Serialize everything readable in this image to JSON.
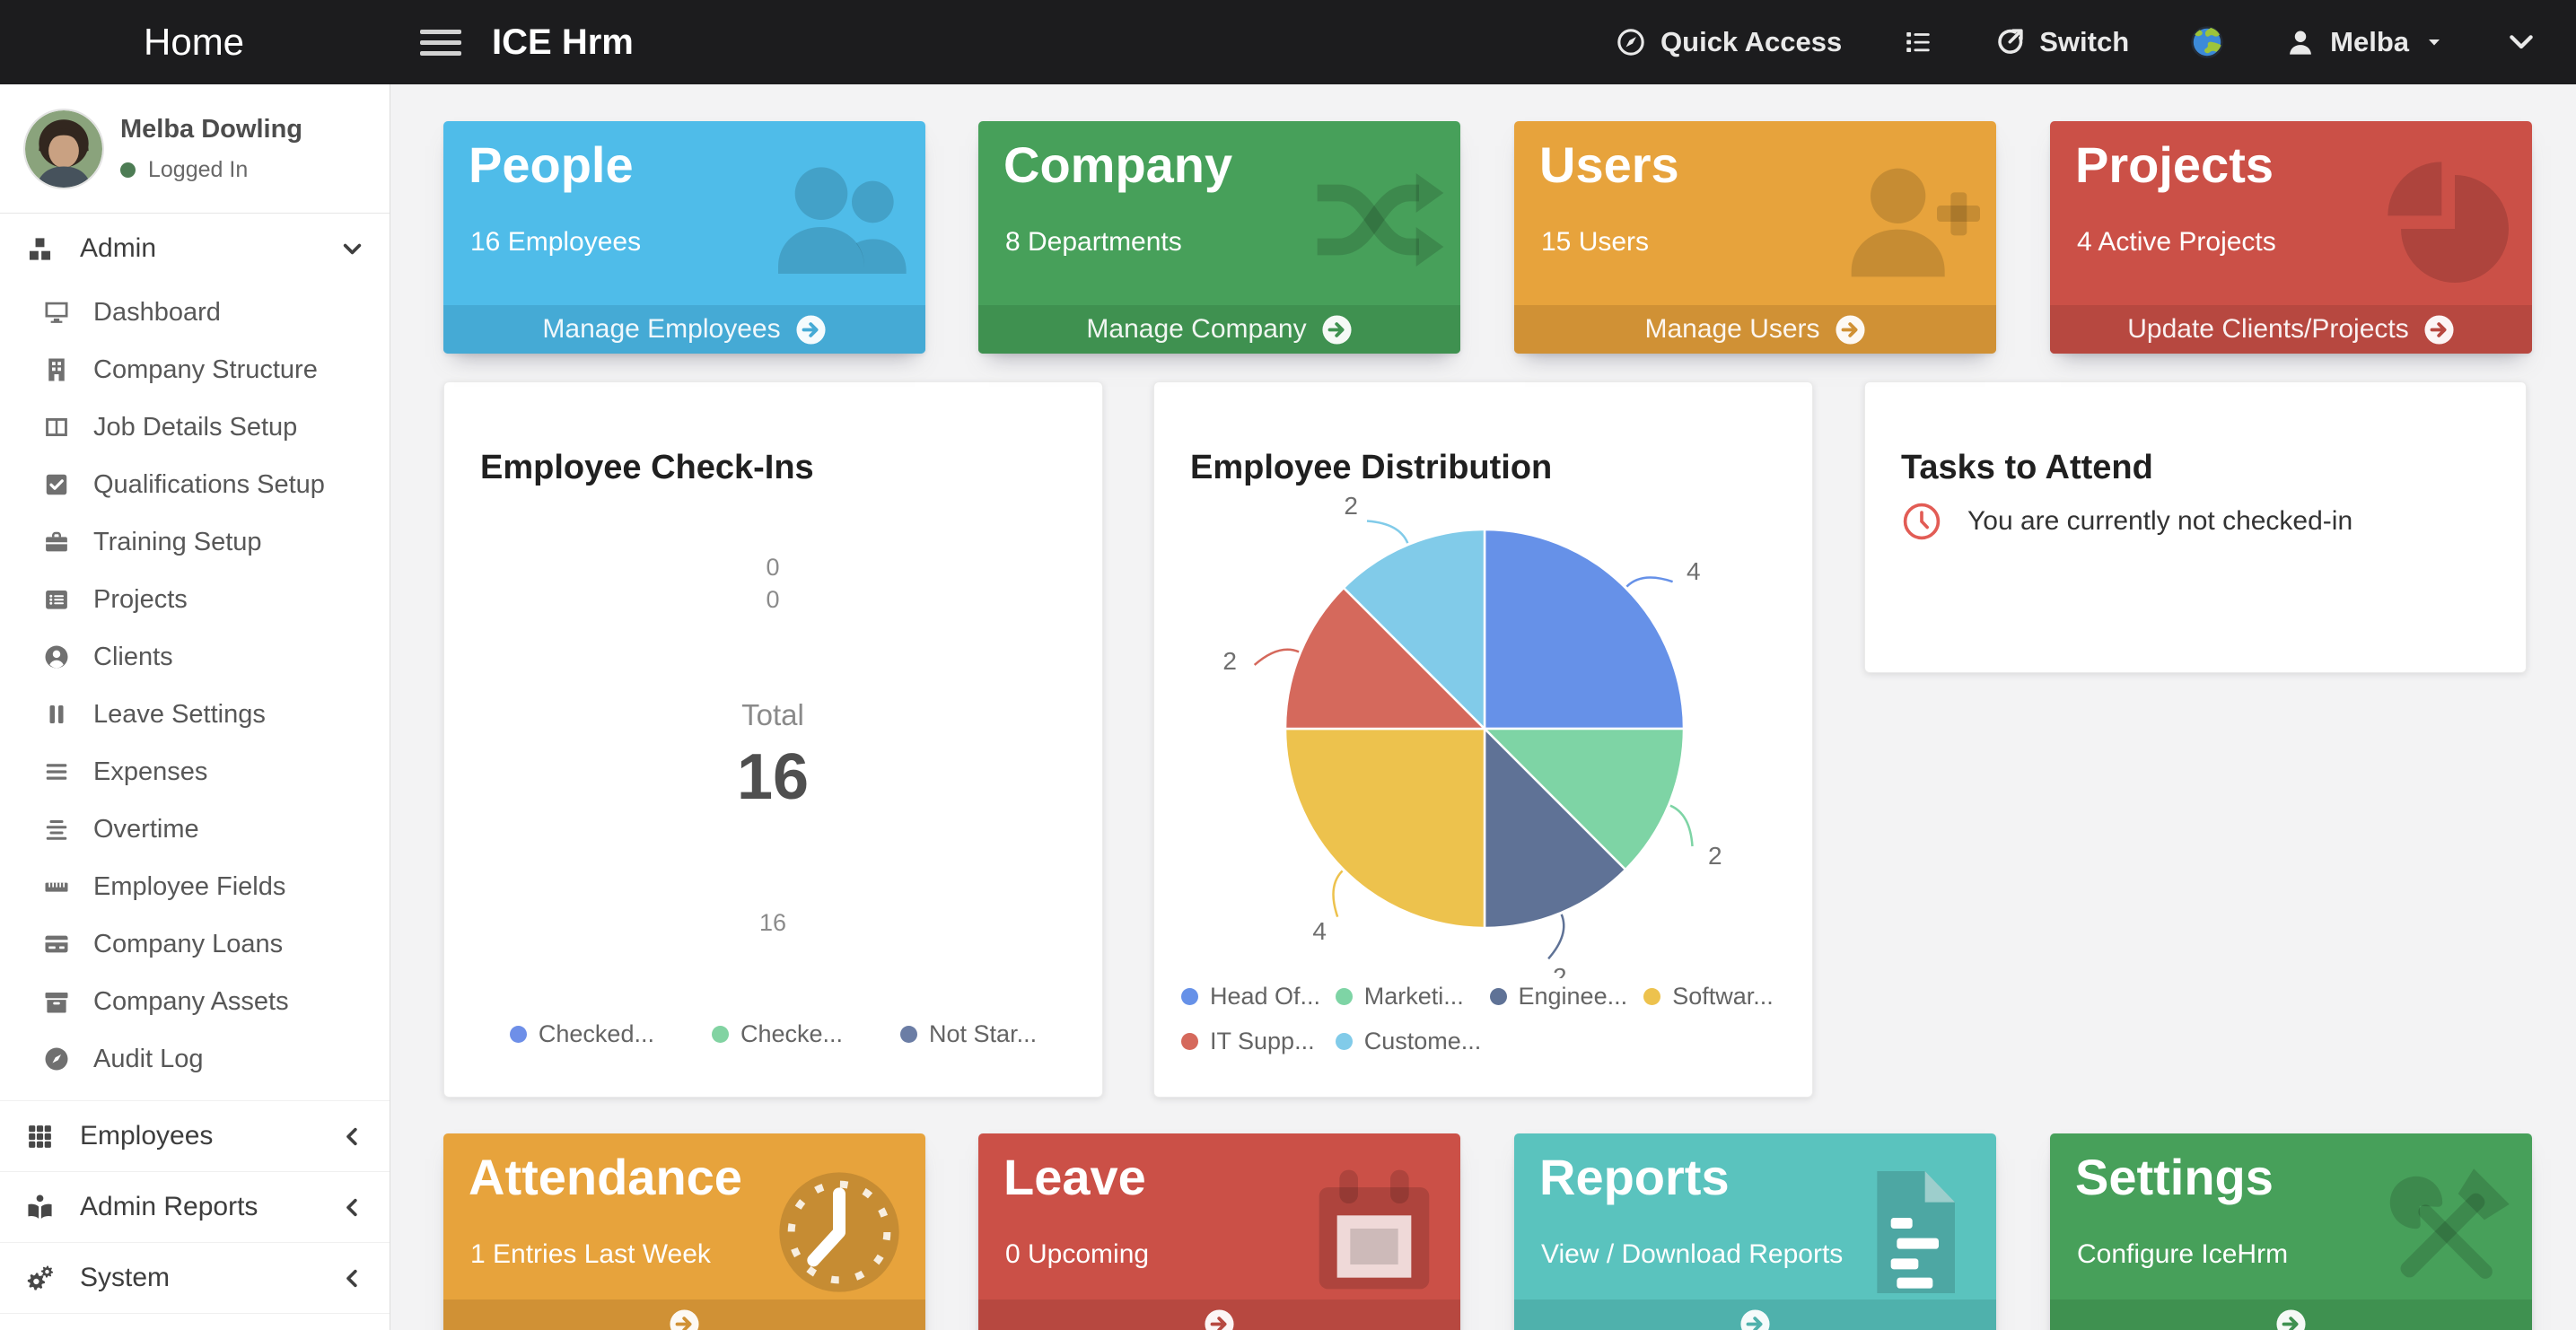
{
  "navbar": {
    "home_label": "Home",
    "brand": "ICE Hrm",
    "menu_icon": "hamburger-icon",
    "items": {
      "quick_access": {
        "label": "Quick Access",
        "icon": "compass-icon"
      },
      "task_list": {
        "icon": "task-list-icon"
      },
      "switch": {
        "label": "Switch",
        "icon": "switch-icon"
      },
      "language": {
        "icon": "globe-icon"
      },
      "user": {
        "label": "Melba",
        "icon": "user-icon",
        "caret_icon": "caret-down-icon"
      },
      "collapse": {
        "icon": "chevron-down-icon"
      }
    }
  },
  "sidebar": {
    "profile": {
      "name": "Melba Dowling",
      "status": "Logged In",
      "status_color": "#4d7c54"
    },
    "sections": [
      {
        "label": "Admin",
        "icon": "cubes-icon",
        "state": "expanded",
        "items": [
          {
            "label": "Dashboard",
            "icon": "desktop-icon"
          },
          {
            "label": "Company Structure",
            "icon": "building-icon"
          },
          {
            "label": "Job Details Setup",
            "icon": "columns-icon"
          },
          {
            "label": "Qualifications Setup",
            "icon": "check-square-icon"
          },
          {
            "label": "Training Setup",
            "icon": "briefcase-icon"
          },
          {
            "label": "Projects",
            "icon": "list-alt-icon"
          },
          {
            "label": "Clients",
            "icon": "user-circle-icon"
          },
          {
            "label": "Leave Settings",
            "icon": "pause-icon"
          },
          {
            "label": "Expenses",
            "icon": "bars-icon"
          },
          {
            "label": "Overtime",
            "icon": "stream-icon"
          },
          {
            "label": "Employee Fields",
            "icon": "ruler-icon"
          },
          {
            "label": "Company Loans",
            "icon": "credit-card-icon"
          },
          {
            "label": "Company Assets",
            "icon": "archive-icon"
          },
          {
            "label": "Audit Log",
            "icon": "compass-filled-icon"
          }
        ]
      },
      {
        "label": "Employees",
        "icon": "grid-icon",
        "state": "collapsed",
        "items": []
      },
      {
        "label": "Admin Reports",
        "icon": "book-reader-icon",
        "state": "collapsed",
        "items": []
      },
      {
        "label": "System",
        "icon": "cogs-icon",
        "state": "collapsed",
        "items": []
      }
    ]
  },
  "action_cards": {
    "top": [
      {
        "title": "People",
        "subtitle": "16 Employees",
        "action_label": "Manage Employees",
        "icon": "people-icon",
        "bg": "#4fbce9",
        "footer_bg": "#45aad5"
      },
      {
        "title": "Company",
        "subtitle": "8 Departments",
        "action_label": "Manage Company",
        "icon": "shuffle-arrows-icon",
        "bg": "#47a05a",
        "footer_bg": "#3f9150"
      },
      {
        "title": "Users",
        "subtitle": "15 Users",
        "action_label": "Manage Users",
        "icon": "user-plus-icon",
        "bg": "#e7a33c",
        "footer_bg": "#d09135"
      },
      {
        "title": "Projects",
        "subtitle": "4 Active Projects",
        "action_label": "Update Clients/Projects",
        "icon": "pie-chart-icon",
        "bg": "#cb5047",
        "footer_bg": "#b74840"
      }
    ],
    "bottom": [
      {
        "title": "Attendance",
        "subtitle": "1 Entries Last Week",
        "action_label": "",
        "icon": "clock-icon",
        "bg": "#e7a33c",
        "footer_bg": "#d09135"
      },
      {
        "title": "Leave",
        "subtitle": "0 Upcoming",
        "action_label": "",
        "icon": "calendar-icon",
        "bg": "#cb5047",
        "footer_bg": "#b74840"
      },
      {
        "title": "Reports",
        "subtitle": "View / Download Reports",
        "action_label": "",
        "icon": "file-text-icon",
        "bg": "#5ac3be",
        "footer_bg": "#4fb1ac"
      },
      {
        "title": "Settings",
        "subtitle": "Configure IceHrm",
        "action_label": "",
        "icon": "tools-icon",
        "bg": "#47a05a",
        "footer_bg": "#3f9150"
      }
    ]
  },
  "tasks_card": {
    "title": "Tasks to Attend",
    "message": "You are currently not checked-in",
    "icon": "clock-alert-icon",
    "icon_color": "#e25c55"
  },
  "chart_data": [
    {
      "type": "pie",
      "variant": "donut",
      "title": "Employee Check-Ins",
      "center_label": "Total",
      "center_value": "16",
      "legend_position": "bottom",
      "series": [
        {
          "label": "Checked...",
          "value": 0,
          "color": "#6e8fe8"
        },
        {
          "label": "Checke...",
          "value": 0,
          "color": "#82d3a2"
        },
        {
          "label": "Not Star...",
          "value": 16,
          "color": "#6b7da5"
        }
      ]
    },
    {
      "type": "pie",
      "title": "Employee Distribution",
      "legend_position": "bottom",
      "total": 16,
      "series": [
        {
          "label": "Head Of...",
          "value": 4,
          "color": "#6691e8"
        },
        {
          "label": "Marketi...",
          "value": 2,
          "color": "#7ed4a5"
        },
        {
          "label": "Enginee...",
          "value": 2,
          "color": "#5f7296"
        },
        {
          "label": "Softwar...",
          "value": 4,
          "color": "#edc24d"
        },
        {
          "label": "IT Supp...",
          "value": 2,
          "color": "#d5695c"
        },
        {
          "label": "Custome...",
          "value": 2,
          "color": "#81cbe9"
        }
      ]
    }
  ]
}
